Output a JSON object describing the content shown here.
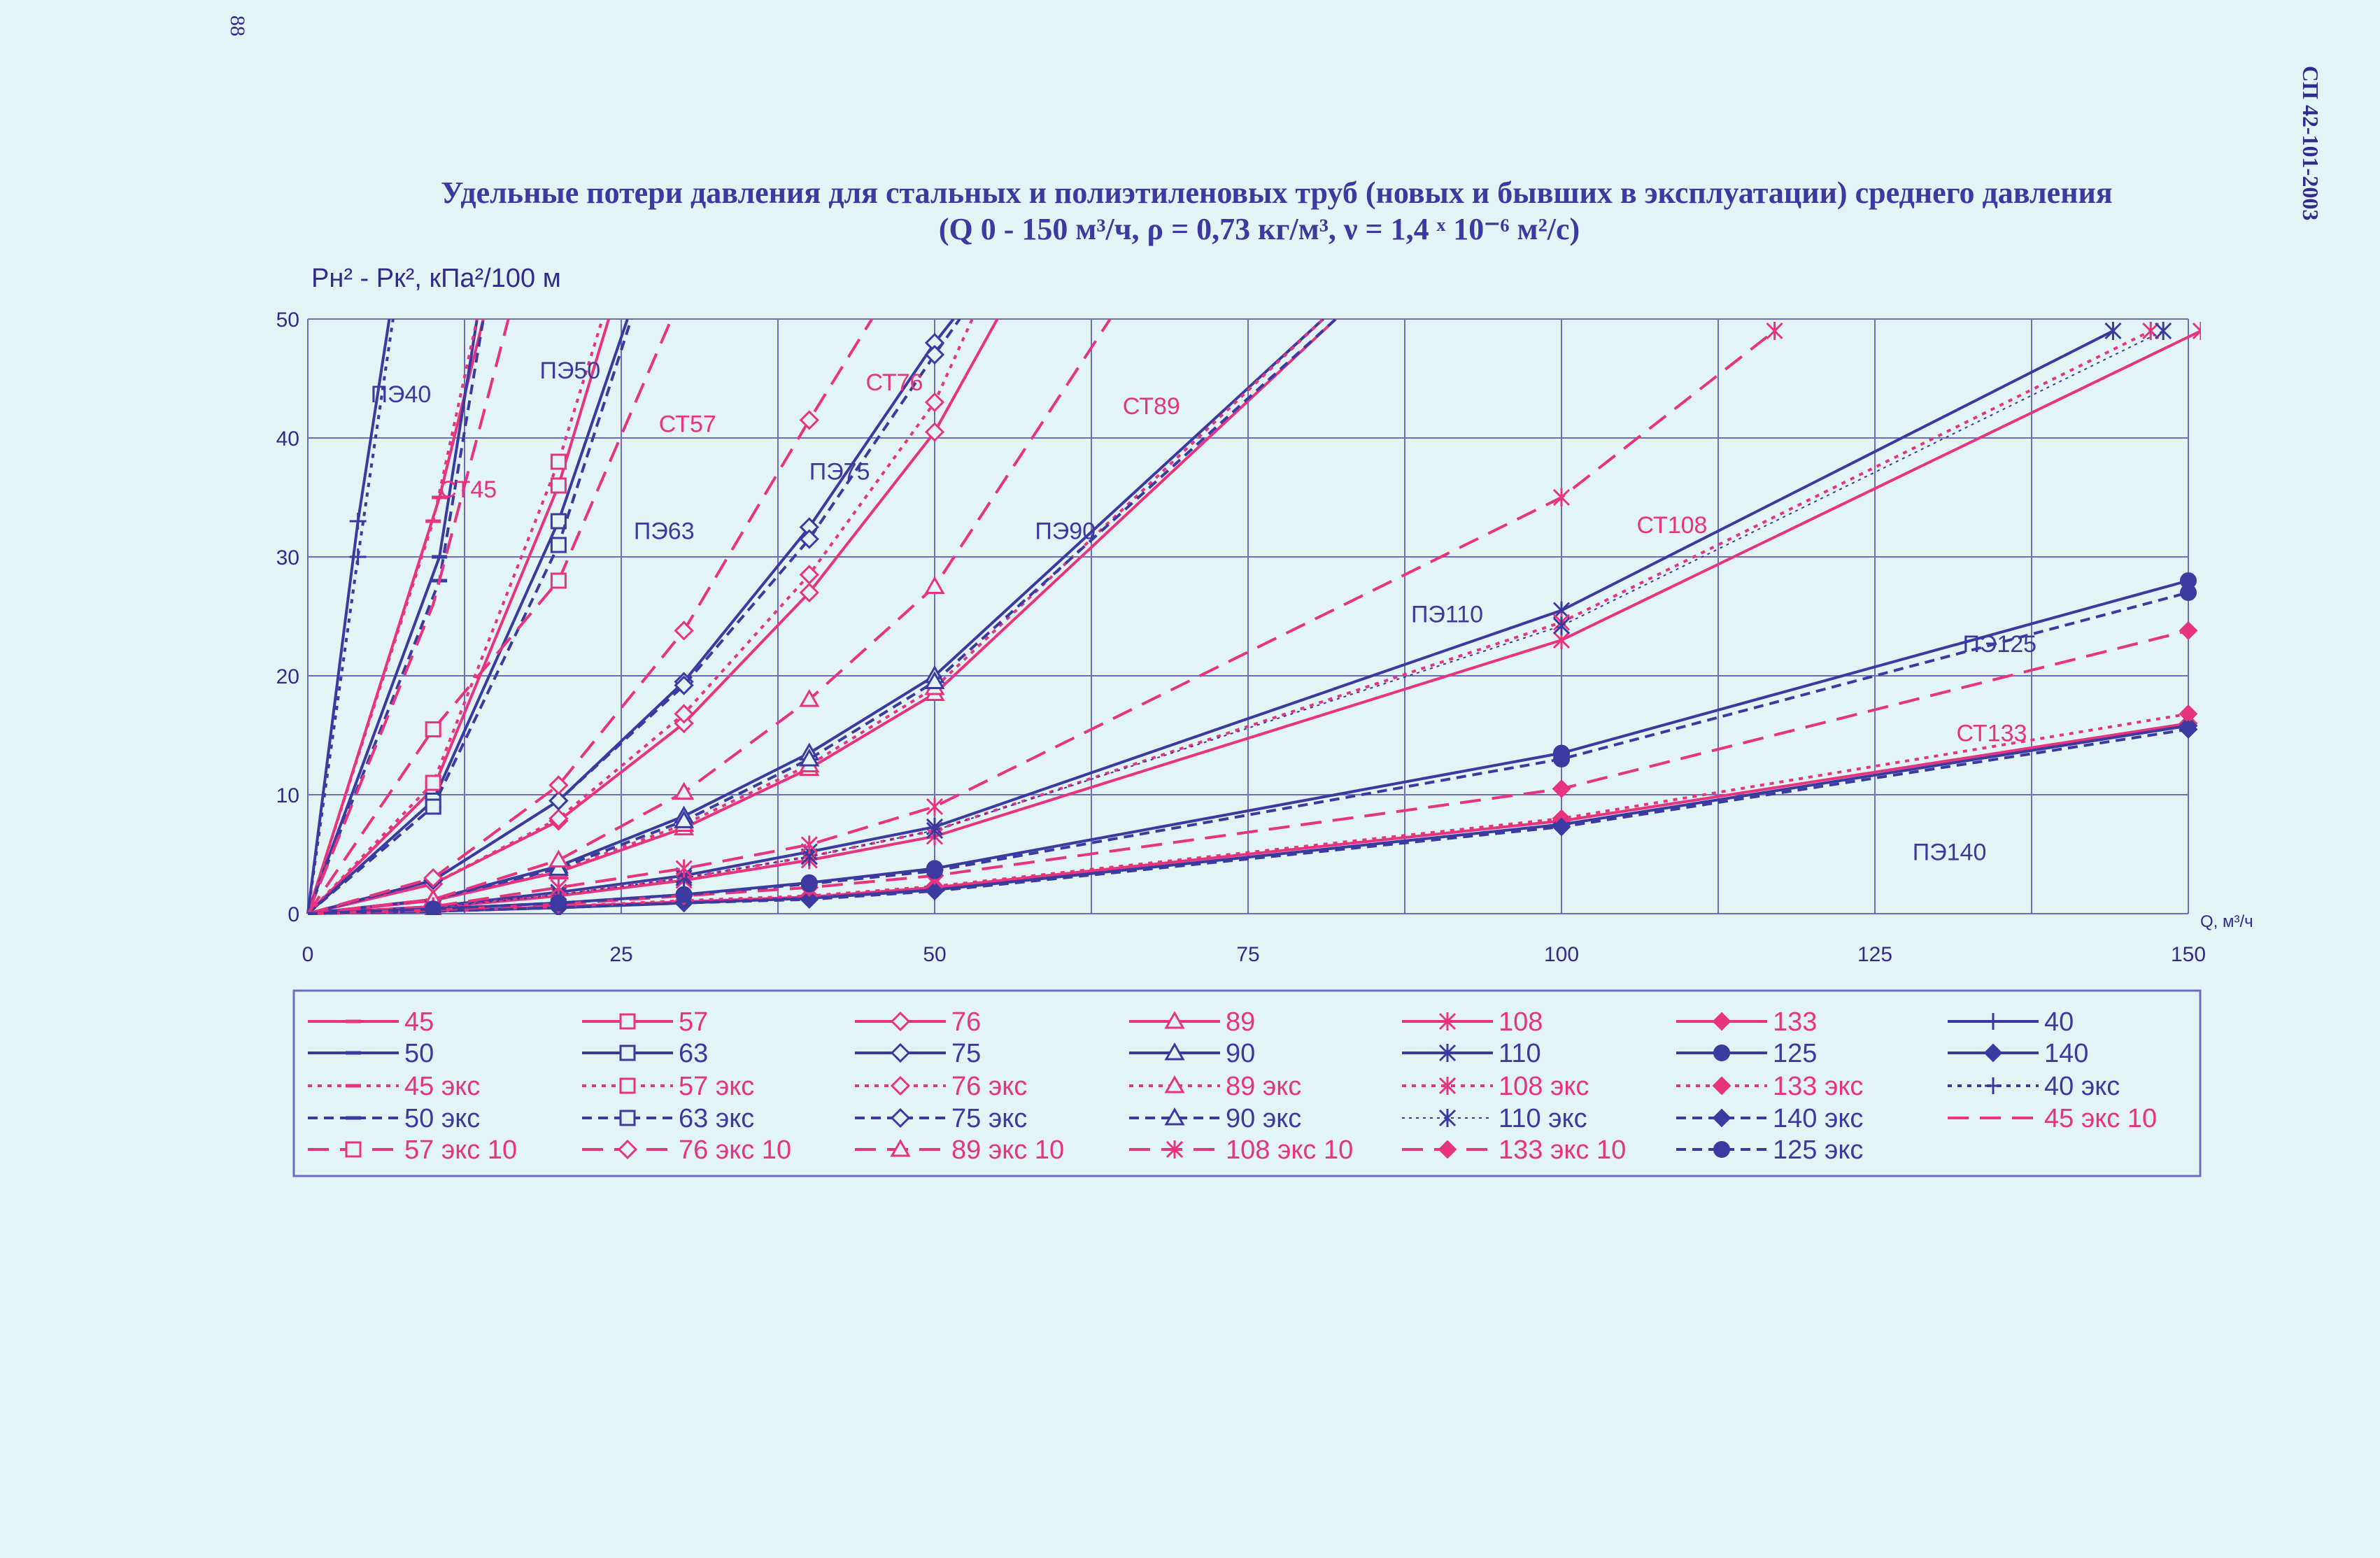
{
  "page": {
    "page_number": "88",
    "doc_code": "СП 42-101-2003",
    "title_line1": "Удельные потери давления для стальных и полиэтиленовых труб (новых и бывших в эксплуатации) среднего давления",
    "title_line2": "(Q 0 - 150 м³/ч, ρ = 0,73 кг/м³, ν = 1,4 ˣ 10⁻⁶ м²/с)"
  },
  "colors": {
    "blue": "#3b3aa0",
    "pink": "#e8347e",
    "grid": "#6d6bc4",
    "text": "#2e2c8c",
    "bg": "#e2f4f6"
  },
  "chart_data": {
    "type": "line",
    "ylabel": "Pн² - Pк², кПа²/100 м",
    "xlabel": "Q, м³/ч",
    "xlim": [
      0,
      150
    ],
    "ylim": [
      0,
      50
    ],
    "x_ticks": [
      "0",
      "25",
      "50",
      "75",
      "100",
      "125",
      "150"
    ],
    "y_ticks": [
      "0",
      "10",
      "20",
      "30",
      "40",
      "50"
    ],
    "x_grid": [
      0,
      12.5,
      25,
      37.5,
      50,
      62.5,
      75,
      87.5,
      100,
      112.5,
      125,
      137.5,
      150
    ],
    "y_grid": [
      0,
      10,
      20,
      30,
      40,
      50
    ],
    "annotations": [
      {
        "text": "ПЭ40",
        "x": 5,
        "y": 43,
        "color": "blue"
      },
      {
        "text": "ПЭ50",
        "x": 18.5,
        "y": 45,
        "color": "blue"
      },
      {
        "text": "СТ57",
        "x": 28,
        "y": 40.5,
        "color": "pink"
      },
      {
        "text": "СТ76",
        "x": 44.5,
        "y": 44,
        "color": "pink"
      },
      {
        "text": "СТ89",
        "x": 65,
        "y": 42,
        "color": "pink"
      },
      {
        "text": "СТ45",
        "x": 10.5,
        "y": 35,
        "color": "pink"
      },
      {
        "text": "ПЭ75",
        "x": 40,
        "y": 36.5,
        "color": "blue"
      },
      {
        "text": "ПЭ63",
        "x": 26,
        "y": 31.5,
        "color": "blue"
      },
      {
        "text": "ПЭ90",
        "x": 58,
        "y": 31.5,
        "color": "blue"
      },
      {
        "text": "ПЭ110",
        "x": 88,
        "y": 24.5,
        "color": "blue"
      },
      {
        "text": "СТ108",
        "x": 106,
        "y": 32,
        "color": "pink"
      },
      {
        "text": "ПЭ125",
        "x": 132,
        "y": 22,
        "color": "blue"
      },
      {
        "text": "СТ133",
        "x": 131.5,
        "y": 14.5,
        "color": "pink"
      },
      {
        "text": "ПЭ140",
        "x": 128,
        "y": 4.5,
        "color": "blue"
      }
    ],
    "series": [
      {
        "name": "45",
        "color": "pink",
        "dash": "solid",
        "marker": "dash",
        "x": [
          0,
          10.5,
          14
        ],
        "y": [
          0,
          35,
          50
        ]
      },
      {
        "name": "50",
        "color": "blue",
        "dash": "solid",
        "marker": "dash",
        "x": [
          0,
          10.5,
          13.5
        ],
        "y": [
          0,
          30,
          50
        ]
      },
      {
        "name": "45 экс",
        "color": "pink",
        "dash": "dot",
        "marker": "dash",
        "x": [
          0,
          10,
          13.5
        ],
        "y": [
          0,
          33,
          50
        ]
      },
      {
        "name": "50 экс",
        "color": "blue",
        "dash": "dash",
        "marker": "dash",
        "x": [
          0,
          10.5,
          14
        ],
        "y": [
          0,
          28,
          50
        ]
      },
      {
        "name": "45 экс 10",
        "color": "pink",
        "dash": "longdash",
        "marker": "none",
        "x": [
          0,
          10,
          16
        ],
        "y": [
          0,
          26,
          50
        ]
      },
      {
        "name": "40",
        "color": "blue",
        "dash": "solid",
        "marker": "plus",
        "x": [
          0,
          4,
          6.5
        ],
        "y": [
          0,
          33,
          50
        ]
      },
      {
        "name": "40 экс",
        "color": "blue",
        "dash": "dot",
        "marker": "plus",
        "x": [
          0,
          4,
          6.8
        ],
        "y": [
          0,
          30,
          50
        ]
      },
      {
        "name": "57",
        "color": "pink",
        "dash": "solid",
        "marker": "square",
        "x": [
          0,
          10,
          20,
          24
        ],
        "y": [
          0,
          10.5,
          36,
          50
        ]
      },
      {
        "name": "63",
        "color": "blue",
        "dash": "solid",
        "marker": "square",
        "x": [
          0,
          10,
          20,
          25.5
        ],
        "y": [
          0,
          9.5,
          33,
          50
        ]
      },
      {
        "name": "57 экс",
        "color": "pink",
        "dash": "dot",
        "marker": "square",
        "x": [
          0,
          10,
          20,
          23.5
        ],
        "y": [
          0,
          11,
          38,
          50
        ]
      },
      {
        "name": "63 экс",
        "color": "blue",
        "dash": "dash",
        "marker": "square",
        "x": [
          0,
          10,
          20,
          25.8
        ],
        "y": [
          0,
          9,
          31,
          50
        ]
      },
      {
        "name": "57 экс 10",
        "color": "pink",
        "dash": "longdash",
        "marker": "square",
        "x": [
          0,
          10,
          20,
          29
        ],
        "y": [
          0,
          15.5,
          28,
          50
        ]
      },
      {
        "name": "76",
        "color": "pink",
        "dash": "solid",
        "marker": "diamond",
        "x": [
          0,
          10,
          20,
          30,
          40,
          50,
          55
        ],
        "y": [
          0,
          2.5,
          7.8,
          16,
          27,
          40.5,
          50
        ]
      },
      {
        "name": "75",
        "color": "blue",
        "dash": "solid",
        "marker": "diamond",
        "x": [
          0,
          10,
          20,
          30,
          40,
          50,
          51.5
        ],
        "y": [
          0,
          2.8,
          9.5,
          19.5,
          32.5,
          48,
          50
        ]
      },
      {
        "name": "76 экс",
        "color": "pink",
        "dash": "dot",
        "marker": "diamond",
        "x": [
          0,
          10,
          20,
          30,
          40,
          50,
          53
        ],
        "y": [
          0,
          2.5,
          8,
          16.8,
          28.5,
          43,
          50
        ]
      },
      {
        "name": "75 экс",
        "color": "blue",
        "dash": "dash",
        "marker": "diamond",
        "x": [
          0,
          10,
          20,
          30,
          40,
          50,
          52
        ],
        "y": [
          0,
          2.8,
          9.5,
          19.2,
          31.5,
          47,
          50
        ]
      },
      {
        "name": "76 экс 10",
        "color": "pink",
        "dash": "longdash",
        "marker": "diamond",
        "x": [
          0,
          10,
          20,
          30,
          40,
          45
        ],
        "y": [
          0,
          3,
          10.8,
          23.8,
          41.5,
          50
        ]
      },
      {
        "name": "89",
        "color": "pink",
        "dash": "solid",
        "marker": "triangle",
        "x": [
          0,
          10,
          20,
          30,
          40,
          50,
          82
        ],
        "y": [
          0,
          1.1,
          3.5,
          7.2,
          12.2,
          18.5,
          50
        ]
      },
      {
        "name": "90",
        "color": "blue",
        "dash": "solid",
        "marker": "triangle",
        "x": [
          0,
          10,
          20,
          30,
          40,
          50,
          81
        ],
        "y": [
          0,
          1.2,
          4,
          8.2,
          13.5,
          20,
          50
        ]
      },
      {
        "name": "89 экс",
        "color": "pink",
        "dash": "dot",
        "marker": "triangle",
        "x": [
          0,
          10,
          20,
          30,
          40,
          50,
          81
        ],
        "y": [
          0,
          1.1,
          3.6,
          7.5,
          12.5,
          19,
          50
        ]
      },
      {
        "name": "90 экс",
        "color": "blue",
        "dash": "dash",
        "marker": "triangle",
        "x": [
          0,
          10,
          20,
          30,
          40,
          50,
          82
        ],
        "y": [
          0,
          1.2,
          3.8,
          7.8,
          13,
          19.5,
          50
        ]
      },
      {
        "name": "89 экс 10",
        "color": "pink",
        "dash": "longdash",
        "marker": "triangle",
        "x": [
          0,
          10,
          20,
          30,
          40,
          50,
          64
        ],
        "y": [
          0,
          1.2,
          4.5,
          10.2,
          18,
          27.5,
          50
        ]
      },
      {
        "name": "108",
        "color": "pink",
        "dash": "solid",
        "marker": "star",
        "x": [
          0,
          10,
          20,
          30,
          40,
          50,
          100,
          151
        ],
        "y": [
          0,
          0.5,
          1.5,
          2.8,
          4.5,
          6.5,
          23,
          49
        ]
      },
      {
        "name": "110",
        "color": "blue",
        "dash": "solid",
        "marker": "star",
        "x": [
          0,
          10,
          20,
          30,
          40,
          50,
          100,
          144
        ],
        "y": [
          0,
          0.6,
          1.8,
          3.2,
          5.2,
          7.3,
          25.5,
          49
        ]
      },
      {
        "name": "108 экс",
        "color": "pink",
        "dash": "dot",
        "marker": "star",
        "x": [
          0,
          10,
          20,
          30,
          40,
          50,
          100,
          147
        ],
        "y": [
          0,
          0.5,
          1.6,
          3,
          4.8,
          7,
          24.5,
          49
        ]
      },
      {
        "name": "110 экс",
        "color": "blue",
        "dash": "thin",
        "marker": "star",
        "x": [
          0,
          10,
          20,
          30,
          40,
          50,
          100,
          148
        ],
        "y": [
          0,
          0.5,
          1.6,
          3,
          4.8,
          7,
          24.2,
          49
        ]
      },
      {
        "name": "108 экс 10",
        "color": "pink",
        "dash": "longdash",
        "marker": "star",
        "x": [
          0,
          10,
          20,
          30,
          40,
          50,
          100,
          117
        ],
        "y": [
          0,
          0.6,
          2.2,
          3.8,
          5.8,
          9,
          35,
          49
        ]
      },
      {
        "name": "133",
        "color": "pink",
        "dash": "solid",
        "marker": "fdiamond",
        "x": [
          0,
          10,
          20,
          30,
          40,
          50,
          100,
          150
        ],
        "y": [
          0,
          0.2,
          0.6,
          1,
          1.4,
          2.2,
          7.8,
          16
        ]
      },
      {
        "name": "125",
        "color": "blue",
        "dash": "solid",
        "marker": "circle",
        "x": [
          0,
          10,
          20,
          30,
          40,
          50,
          100,
          150
        ],
        "y": [
          0,
          0.4,
          0.9,
          1.6,
          2.6,
          3.8,
          13.5,
          28
        ]
      },
      {
        "name": "140",
        "color": "blue",
        "dash": "solid",
        "marker": "fdiamond",
        "x": [
          0,
          10,
          20,
          30,
          40,
          50,
          100,
          150
        ],
        "y": [
          0,
          0.2,
          0.5,
          0.9,
          1.3,
          2,
          7.5,
          15.8
        ]
      },
      {
        "name": "133 экс",
        "color": "pink",
        "dash": "dot",
        "marker": "fdiamond",
        "x": [
          0,
          10,
          20,
          30,
          40,
          50,
          100,
          150
        ],
        "y": [
          0,
          0.2,
          0.6,
          1.1,
          1.5,
          2.3,
          8,
          16.8
        ]
      },
      {
        "name": "140 экс",
        "color": "blue",
        "dash": "dash",
        "marker": "fdiamond",
        "x": [
          0,
          10,
          20,
          30,
          40,
          50,
          100,
          150
        ],
        "y": [
          0,
          0.2,
          0.5,
          0.9,
          1.2,
          1.9,
          7.3,
          15.5
        ]
      },
      {
        "name": "133 экс 10",
        "color": "pink",
        "dash": "longdash",
        "marker": "fdiamond",
        "x": [
          0,
          10,
          20,
          30,
          40,
          50,
          100,
          150
        ],
        "y": [
          0,
          0.3,
          0.8,
          1.5,
          2.2,
          3.2,
          10.5,
          23.8
        ]
      },
      {
        "name": "125 экс",
        "color": "blue",
        "dash": "dash",
        "marker": "circle",
        "x": [
          0,
          10,
          20,
          30,
          40,
          50,
          100,
          150
        ],
        "y": [
          0,
          0.4,
          0.9,
          1.6,
          2.5,
          3.6,
          13,
          27
        ]
      }
    ],
    "legend": {
      "placement": "bottom",
      "rows": [
        [
          "45",
          "57",
          "76",
          "89",
          "108",
          "133",
          "40"
        ],
        [
          "50",
          "63",
          "75",
          "90",
          "110",
          "125",
          "140"
        ],
        [
          "45 экс",
          "57 экс",
          "76 экс",
          "89 экс",
          "108 экс",
          "133 экс",
          "40 экс"
        ],
        [
          "50 экс",
          "63 экс",
          "75 экс",
          "90 экс",
          "110 экс",
          "140 экс",
          "45 экс 10"
        ],
        [
          "57 экс 10",
          "76 экс 10",
          "89 экс 10",
          "108 экс 10",
          "133 экс 10",
          "125 экс"
        ]
      ]
    }
  }
}
